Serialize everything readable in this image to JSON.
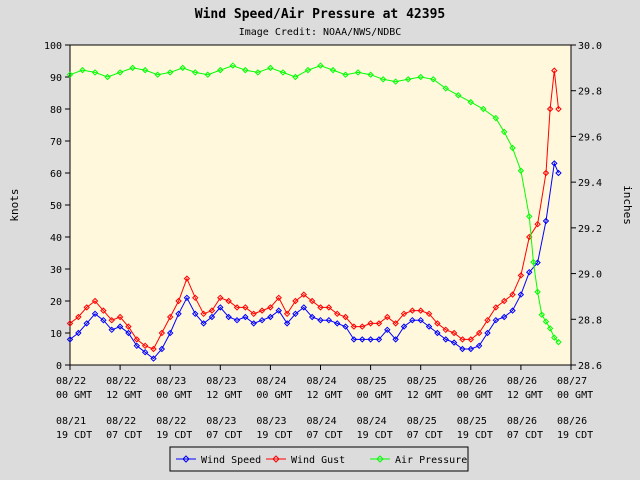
{
  "chart_data": {
    "type": "line",
    "title": "Wind Speed/Air Pressure at 42395",
    "subtitle": "Image Credit: NOAA/NWS/NDBC",
    "ylabel_left": "knots",
    "ylabel_right": "inches",
    "ylim_left": [
      0,
      100
    ],
    "ylim_right": [
      28.6,
      30.0
    ],
    "yticks_left": [
      "0",
      "10",
      "20",
      "30",
      "40",
      "50",
      "60",
      "70",
      "80",
      "90",
      "100"
    ],
    "yticks_right": [
      "28.6",
      "28.8",
      "29.0",
      "29.2",
      "29.4",
      "29.6",
      "29.8",
      "30.0"
    ],
    "xlim_hours_gmt": [
      0,
      120
    ],
    "x_ticks": [
      {
        "gmt_date": "08/22",
        "gmt_time": "00 GMT",
        "local_date": "08/21",
        "local_time": "19 CDT"
      },
      {
        "gmt_date": "08/22",
        "gmt_time": "12 GMT",
        "local_date": "08/22",
        "local_time": "07 CDT"
      },
      {
        "gmt_date": "08/23",
        "gmt_time": "00 GMT",
        "local_date": "08/22",
        "local_time": "19 CDT"
      },
      {
        "gmt_date": "08/23",
        "gmt_time": "12 GMT",
        "local_date": "08/23",
        "local_time": "07 CDT"
      },
      {
        "gmt_date": "08/24",
        "gmt_time": "00 GMT",
        "local_date": "08/23",
        "local_time": "19 CDT"
      },
      {
        "gmt_date": "08/24",
        "gmt_time": "12 GMT",
        "local_date": "08/24",
        "local_time": "07 CDT"
      },
      {
        "gmt_date": "08/25",
        "gmt_time": "00 GMT",
        "local_date": "08/24",
        "local_time": "19 CDT"
      },
      {
        "gmt_date": "08/25",
        "gmt_time": "12 GMT",
        "local_date": "08/25",
        "local_time": "07 CDT"
      },
      {
        "gmt_date": "08/26",
        "gmt_time": "00 GMT",
        "local_date": "08/25",
        "local_time": "19 CDT"
      },
      {
        "gmt_date": "08/26",
        "gmt_time": "12 GMT",
        "local_date": "08/26",
        "local_time": "07 CDT"
      },
      {
        "gmt_date": "08/27",
        "gmt_time": "00 GMT",
        "local_date": "08/26",
        "local_time": "19 CDT"
      }
    ],
    "grid": false,
    "legend_position": "bottom-center",
    "colors": {
      "plot_bg": "#fff8dc",
      "page_bg": "#dcdcdc",
      "wind_speed": "#0000ff",
      "wind_gust": "#ff0000",
      "air_pressure": "#00ff00"
    },
    "series": [
      {
        "name": "Wind Speed",
        "axis": "left",
        "x": [
          0,
          2,
          4,
          6,
          8,
          10,
          12,
          14,
          16,
          18,
          20,
          22,
          24,
          26,
          28,
          30,
          32,
          34,
          36,
          38,
          40,
          42,
          44,
          46,
          48,
          50,
          52,
          54,
          56,
          58,
          60,
          62,
          64,
          66,
          68,
          70,
          72,
          74,
          76,
          78,
          80,
          82,
          84,
          86,
          88,
          90,
          92,
          94,
          96,
          98,
          100,
          102,
          104,
          106,
          108,
          110,
          112,
          114,
          116,
          117
        ],
        "values": [
          8,
          10,
          13,
          16,
          14,
          11,
          12,
          10,
          6,
          4,
          2,
          5,
          10,
          16,
          21,
          16,
          13,
          15,
          18,
          15,
          14,
          15,
          13,
          14,
          15,
          17,
          13,
          16,
          18,
          15,
          14,
          14,
          13,
          12,
          8,
          8,
          8,
          8,
          11,
          8,
          12,
          14,
          14,
          12,
          10,
          8,
          7,
          5,
          5,
          6,
          10,
          14,
          15,
          17,
          22,
          29,
          32,
          45,
          63,
          60
        ]
      },
      {
        "name": "Wind Gust",
        "axis": "left",
        "x": [
          0,
          2,
          4,
          6,
          8,
          10,
          12,
          14,
          16,
          18,
          20,
          22,
          24,
          26,
          28,
          30,
          32,
          34,
          36,
          38,
          40,
          42,
          44,
          46,
          48,
          50,
          52,
          54,
          56,
          58,
          60,
          62,
          64,
          66,
          68,
          70,
          72,
          74,
          76,
          78,
          80,
          82,
          84,
          86,
          88,
          90,
          92,
          94,
          96,
          98,
          100,
          102,
          104,
          106,
          108,
          110,
          112,
          114,
          115,
          116,
          117
        ],
        "values": [
          13,
          15,
          18,
          20,
          17,
          14,
          15,
          12,
          8,
          6,
          5,
          10,
          15,
          20,
          27,
          21,
          16,
          17,
          21,
          20,
          18,
          18,
          16,
          17,
          18,
          21,
          16,
          20,
          22,
          20,
          18,
          18,
          16,
          15,
          12,
          12,
          13,
          13,
          15,
          13,
          16,
          17,
          17,
          16,
          13,
          11,
          10,
          8,
          8,
          10,
          14,
          18,
          20,
          22,
          28,
          40,
          44,
          60,
          80,
          92,
          80
        ]
      },
      {
        "name": "Air Pressure",
        "axis": "right",
        "x": [
          0,
          3,
          6,
          9,
          12,
          15,
          18,
          21,
          24,
          27,
          30,
          33,
          36,
          39,
          42,
          45,
          48,
          51,
          54,
          57,
          60,
          63,
          66,
          69,
          72,
          75,
          78,
          81,
          84,
          87,
          90,
          93,
          96,
          99,
          102,
          104,
          106,
          108,
          110,
          111,
          112,
          113,
          114,
          115,
          116,
          117
        ],
        "values": [
          29.87,
          29.89,
          29.88,
          29.86,
          29.88,
          29.9,
          29.89,
          29.87,
          29.88,
          29.9,
          29.88,
          29.87,
          29.89,
          29.91,
          29.89,
          29.88,
          29.9,
          29.88,
          29.86,
          29.89,
          29.91,
          29.89,
          29.87,
          29.88,
          29.87,
          29.85,
          29.84,
          29.85,
          29.86,
          29.85,
          29.81,
          29.78,
          29.75,
          29.72,
          29.68,
          29.62,
          29.55,
          29.45,
          29.25,
          29.05,
          28.92,
          28.82,
          28.79,
          28.76,
          28.72,
          28.7
        ]
      }
    ]
  }
}
